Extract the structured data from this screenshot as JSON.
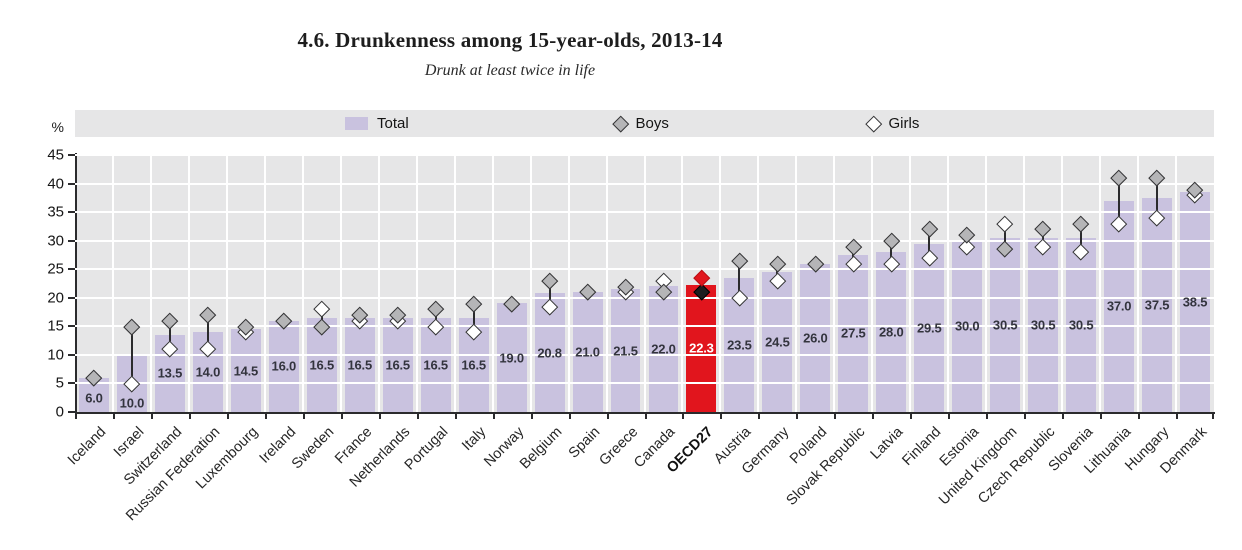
{
  "page": {
    "title": "4.6. Drunkenness among 15-year-olds, 2013-14",
    "subtitle": "Drunk at least twice in life"
  },
  "legend": {
    "total": "Total",
    "boys": "Boys",
    "girls": "Girls"
  },
  "y_axis": {
    "unit_label": "%",
    "ticks": [
      0,
      5,
      10,
      15,
      20,
      25,
      30,
      35,
      40,
      45
    ]
  },
  "colors": {
    "bar": "#c9c2df",
    "highlight_bar": "#e1151d",
    "boys_marker": "#b5b5b7",
    "girls_marker": "#ffffff",
    "marker_border": "#333335",
    "highlight_boys_marker": "#e1151d",
    "highlight_girls_marker": "#1d1d1f",
    "plot_background": "#e6e6e7",
    "gridline": "#ffffff",
    "axis": "#2b2b2d",
    "value_label": "#33343e",
    "highlight_value_label": "#ffffff"
  },
  "chart_data": {
    "type": "bar",
    "title": "4.6. Drunkenness among 15-year-olds, 2013-14",
    "subtitle": "Drunk at least twice in life",
    "xlabel": "",
    "ylabel": "%",
    "ylim": [
      0,
      45
    ],
    "y_tick_step": 5,
    "grid": true,
    "legend_position": "top",
    "legend": [
      "Total",
      "Boys",
      "Girls"
    ],
    "categories": [
      "Iceland",
      "Israel",
      "Switzerland",
      "Russian Federation",
      "Luxembourg",
      "Ireland",
      "Sweden",
      "France",
      "Netherlands",
      "Portugal",
      "Italy",
      "Norway",
      "Belgium",
      "Spain",
      "Greece",
      "Canada",
      "OECD27",
      "Austria",
      "Germany",
      "Poland",
      "Slovak Republic",
      "Latvia",
      "Finland",
      "Estonia",
      "United Kingdom",
      "Czech Republic",
      "Slovenia",
      "Lithuania",
      "Hungary",
      "Denmark"
    ],
    "series": [
      {
        "name": "Total",
        "type": "bar",
        "values": [
          6.0,
          10.0,
          13.5,
          14.0,
          14.5,
          16.0,
          16.5,
          16.5,
          16.5,
          16.5,
          16.5,
          19.0,
          20.8,
          21.0,
          21.5,
          22.0,
          22.3,
          23.5,
          24.5,
          26.0,
          27.5,
          28.0,
          29.5,
          30.0,
          30.5,
          30.5,
          30.5,
          37.0,
          37.5,
          38.5
        ]
      },
      {
        "name": "Boys",
        "type": "diamond-marker",
        "values": [
          6.0,
          15.0,
          16.0,
          17.0,
          15.0,
          16.0,
          15.0,
          17.0,
          17.0,
          18.0,
          19.0,
          19.0,
          23.0,
          21.0,
          22.0,
          21.0,
          23.5,
          26.5,
          26.0,
          26.0,
          29.0,
          30.0,
          32.0,
          31.0,
          28.5,
          32.0,
          33.0,
          41.0,
          41.0,
          39.0
        ]
      },
      {
        "name": "Girls",
        "type": "diamond-marker",
        "values": [
          6.0,
          5.0,
          11.0,
          11.0,
          14.0,
          16.0,
          18.0,
          16.0,
          16.0,
          15.0,
          14.0,
          19.0,
          18.5,
          21.0,
          21.0,
          23.0,
          21.0,
          20.0,
          23.0,
          26.0,
          26.0,
          26.0,
          27.0,
          29.0,
          33.0,
          29.0,
          28.0,
          33.0,
          34.0,
          38.0
        ]
      }
    ],
    "bar_value_labels": [
      "6.0",
      "10.0",
      "13.5",
      "14.0",
      "14.5",
      "16.0",
      "16.5",
      "16.5",
      "16.5",
      "16.5",
      "16.5",
      "19.0",
      "20.8",
      "21.0",
      "21.5",
      "22.0",
      "22.3",
      "23.5",
      "24.5",
      "26.0",
      "27.5",
      "28.0",
      "29.5",
      "30.0",
      "30.5",
      "30.5",
      "30.5",
      "37.0",
      "37.5",
      "38.5"
    ],
    "highlight": {
      "category": "OECD27",
      "index": 16,
      "value": 22.3,
      "note": "highlighted series average bar drawn in red with red boys diamond and black girls diamond, white value label, bold axis label"
    }
  }
}
